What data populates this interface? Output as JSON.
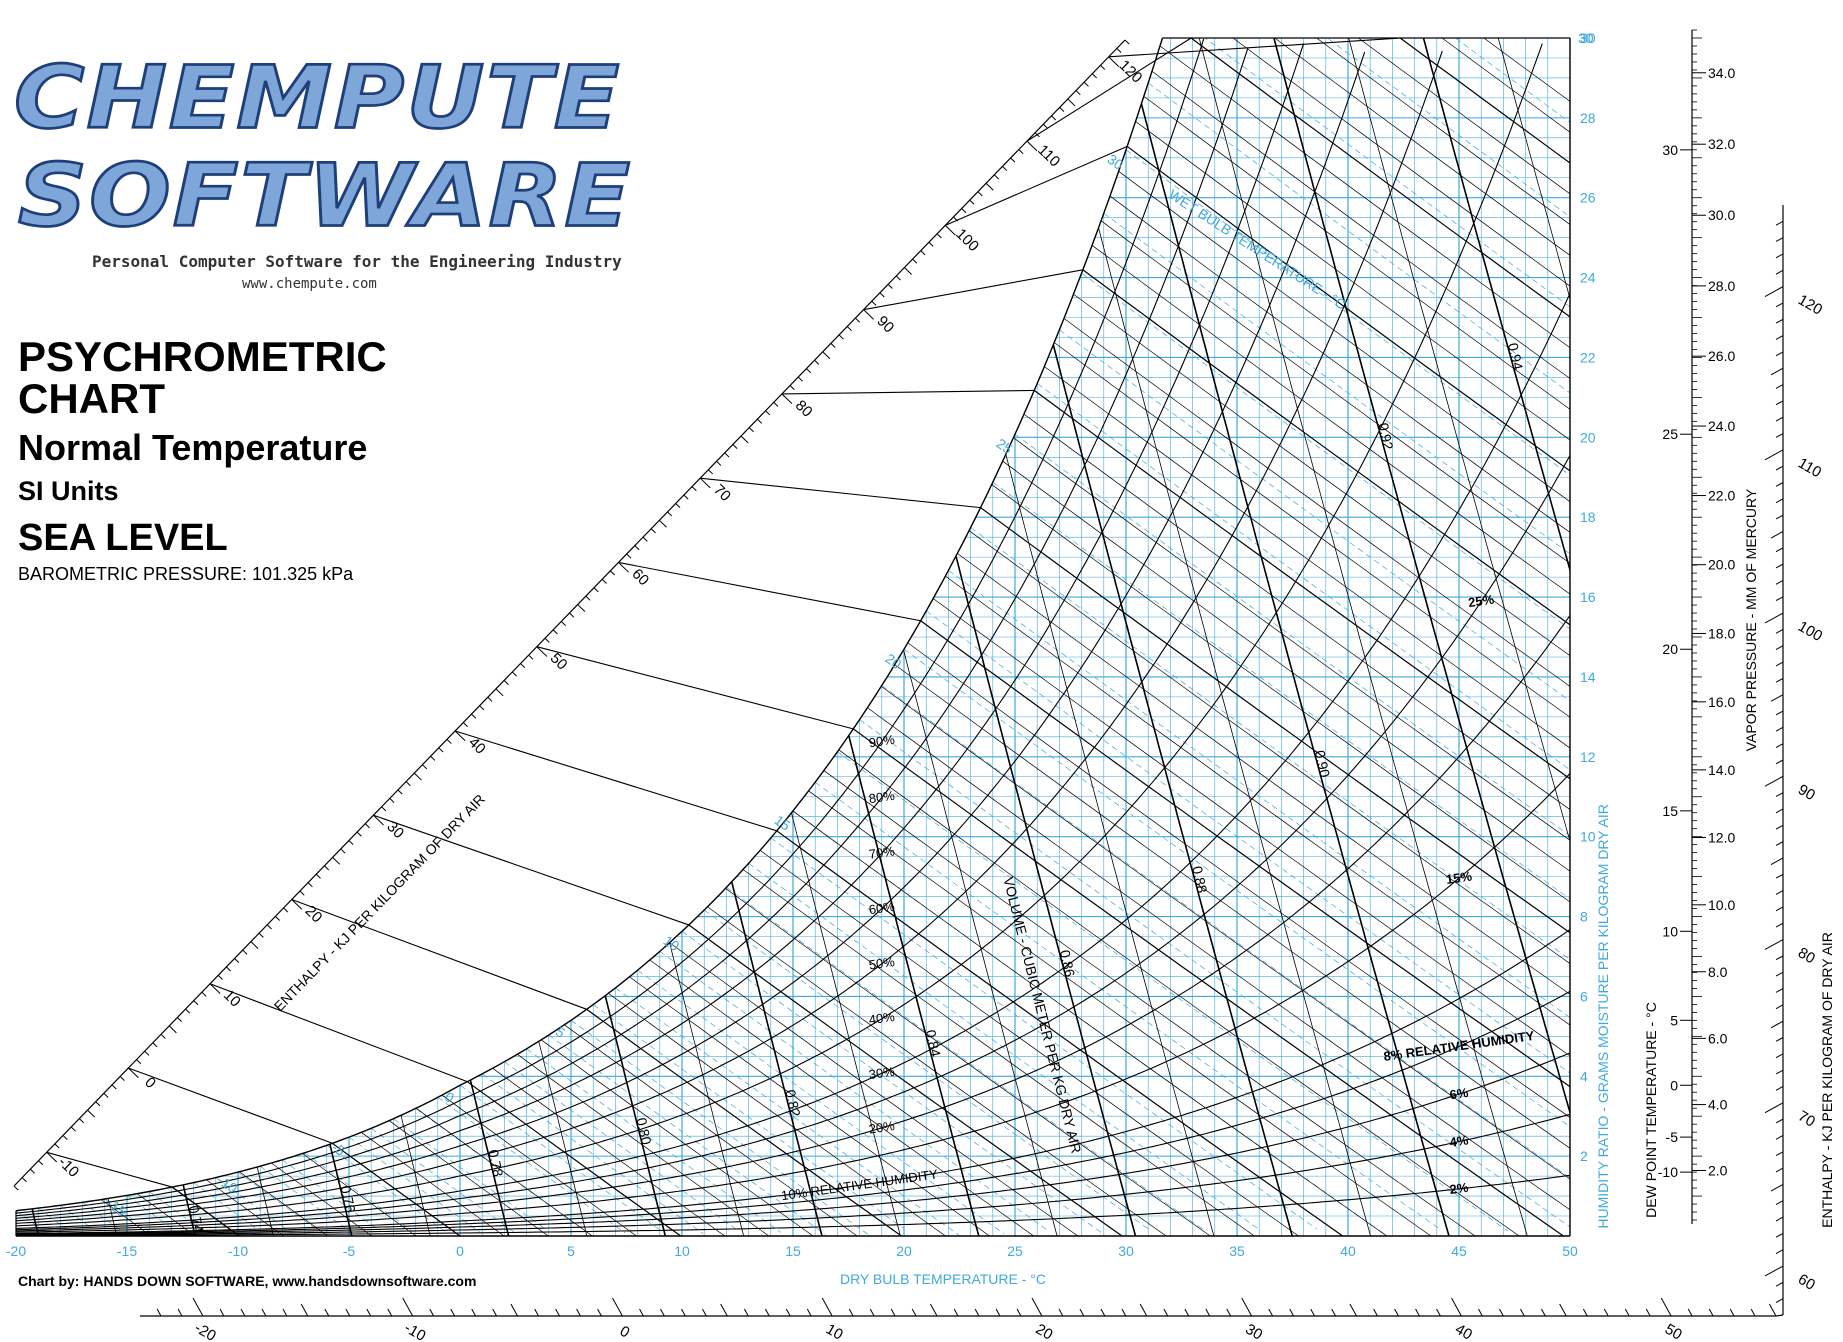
{
  "logo": {
    "line1": "CHEMPUTE",
    "line2": "SOFTWARE",
    "tagline": "Personal Computer Software for the Engineering Industry",
    "url": "www.chempute.com"
  },
  "title": {
    "line1": "PSYCHROMETRIC CHART",
    "line2": "Normal Temperature",
    "line3": "SI Units",
    "line4": "SEA LEVEL",
    "line5": "BAROMETRIC PRESSURE: 101.325 kPa"
  },
  "credit": "Chart by: HANDS DOWN SOFTWARE, www.handsdownsoftware.com",
  "colors": {
    "grid": "#3fa9dc",
    "ink": "#000000"
  },
  "chart_data": {
    "type": "line",
    "pressure_kpa": 101.325,
    "dry_bulb_range_c": [
      -20,
      50
    ],
    "humidity_ratio_range_g_per_kg": [
      0,
      30
    ],
    "x_ticks": [
      -20,
      -15,
      -10,
      -5,
      0,
      5,
      10,
      15,
      20,
      25,
      30,
      35,
      40,
      45,
      50
    ],
    "y_ticks": [
      2,
      4,
      6,
      8,
      10,
      12,
      14,
      16,
      18,
      20,
      22,
      24,
      26,
      28,
      30
    ],
    "xlabel": "DRY BULB TEMPERATURE - °C",
    "ylabel": "HUMIDITY RATIO - GRAMS MOISTURE PER KILOGRAM DRY AIR",
    "rh_curves_percent": [
      2,
      4,
      6,
      8,
      10,
      15,
      20,
      25,
      30,
      40,
      50,
      60,
      70,
      80,
      90
    ],
    "rh_labels": [
      "2%",
      "4%",
      "6%",
      "8%",
      "10% RELATIVE HUMIDITY",
      "15%",
      "20%",
      "25%",
      "30%",
      "40%",
      "50%",
      "60%",
      "70%",
      "80%",
      "90%"
    ],
    "rh_label_side": "8% RELATIVE HUMIDITY",
    "rh_label_low": "RELATIVE HUMIDITY",
    "volume_lines_m3_per_kg": [
      0.74,
      0.76,
      0.78,
      0.8,
      0.82,
      0.84,
      0.86,
      0.88,
      0.9,
      0.92,
      0.94
    ],
    "volume_labels": [
      "0.74",
      "0.76",
      "0.78",
      "0.80",
      "0.82",
      "0.84",
      "0.86",
      "0.88",
      "0.90",
      "0.92",
      "0.94"
    ],
    "volume_caption": "VOLUME - CUBIC METER PER KG DRY AIR",
    "wet_bulb_labels_c": [
      -15,
      -10,
      -5,
      0,
      5,
      10,
      15,
      20,
      25,
      30
    ],
    "wet_bulb_caption": "WET BULB TEMPERATURE - °C",
    "enthalpy_lines_kj_per_kg": [
      -10,
      0,
      10,
      20,
      30,
      40,
      50,
      60,
      70,
      80,
      90,
      100,
      110,
      120
    ],
    "enthalpy_left_label": "ENTHALPY - KJ PER KILOGRAM OF DRY AIR",
    "enthalpy_right_ticks": [
      60,
      70,
      80,
      90,
      100,
      110,
      120
    ],
    "enthalpy_right_label": "ENTHALPY - KJ PER KILOGRAM OF DRY AIR",
    "enthalpy_bottom_ticks": [
      -20,
      -10,
      0,
      10,
      20,
      30,
      40,
      50
    ],
    "vapor_pressure_ticks_mmhg": [
      "2.0",
      "4.0",
      "6.0",
      "8.0",
      "10.0",
      "12.0",
      "14.0",
      "16.0",
      "18.0",
      "20.0",
      "22.0",
      "24.0",
      "26.0",
      "28.0",
      "30.0",
      "32.0",
      "34.0"
    ],
    "vapor_pressure_label": "VAPOR PRESSURE - MM OF MERCURY",
    "dew_point_ticks_c": [
      -10,
      -5,
      0,
      5,
      10,
      15,
      20,
      25,
      30
    ],
    "dew_point_label": "DEW POINT TEMPERATURE - °C",
    "grid": true,
    "legend": "none"
  }
}
